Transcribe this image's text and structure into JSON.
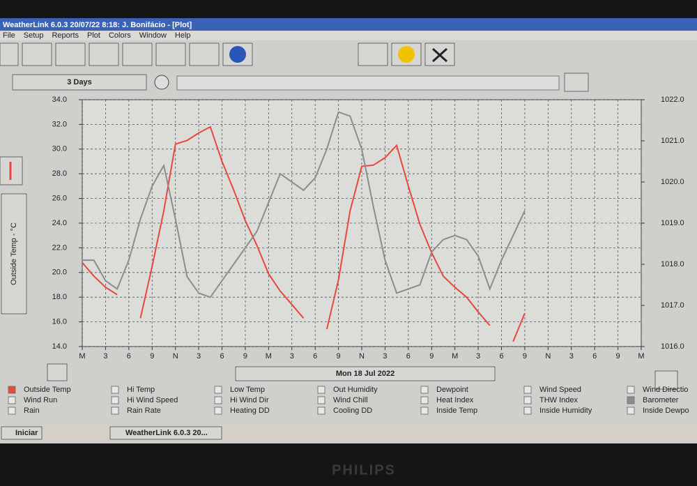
{
  "ui": {
    "title_bar": "WeatherLink 6.0.3  20/07/22  8:18: J. Bonifácio - [Plot]",
    "menu": [
      "File",
      "Setup",
      "Reports",
      "Plot",
      "Colors",
      "Window",
      "Help"
    ],
    "range_button": "3 Days",
    "legend_options": [
      "Wind Run",
      "Rain",
      "Hi Temp",
      "Hi Wind Speed",
      "Rain Rate",
      "Low Temp",
      "Hi Wind Dir",
      "Heating DD",
      "Out Humidity",
      "Wind Chill",
      "Cooling DD",
      "Dewpoint",
      "Heat Index",
      "Inside Temp",
      "Wind Speed",
      "THW Index",
      "Inside Humidity",
      "Wind Directio",
      "Inside Dewpo"
    ],
    "taskbar_start": "Iniciar",
    "taskbar_task": "WeatherLink 6.0.3  20...",
    "monitor_brand": "PHILIPS"
  },
  "chart_data": {
    "type": "line",
    "y_label": "Outside Temp - °C",
    "date_label": "Mon 18 Jul 2022",
    "x": [
      0,
      1.5,
      3,
      4.5,
      6,
      7.5,
      9,
      10.5,
      12,
      13.5,
      15,
      16.5,
      18,
      19.5,
      21,
      22.5,
      24,
      25.5,
      27,
      28.5,
      30,
      31.5,
      33,
      34.5,
      36,
      37.5,
      39,
      40.5,
      42,
      43.5,
      45,
      46.5,
      48,
      49.5,
      51,
      52.5,
      54,
      55.5,
      57
    ],
    "xlim": [
      0,
      72
    ],
    "xticks": [
      {
        "value": 0,
        "label": "M"
      },
      {
        "value": 3,
        "label": "3"
      },
      {
        "value": 6,
        "label": "6"
      },
      {
        "value": 9,
        "label": "9"
      },
      {
        "value": 12,
        "label": "N"
      },
      {
        "value": 15,
        "label": "3"
      },
      {
        "value": 18,
        "label": "6"
      },
      {
        "value": 21,
        "label": "9"
      },
      {
        "value": 24,
        "label": "M"
      },
      {
        "value": 27,
        "label": "3"
      },
      {
        "value": 30,
        "label": "6"
      },
      {
        "value": 33,
        "label": "9"
      },
      {
        "value": 36,
        "label": "N"
      },
      {
        "value": 39,
        "label": "3"
      },
      {
        "value": 42,
        "label": "6"
      },
      {
        "value": 45,
        "label": "9"
      },
      {
        "value": 48,
        "label": "M"
      },
      {
        "value": 51,
        "label": "3"
      },
      {
        "value": 54,
        "label": "6"
      },
      {
        "value": 57,
        "label": "9"
      },
      {
        "value": 60,
        "label": "N"
      },
      {
        "value": 63,
        "label": "3"
      },
      {
        "value": 66,
        "label": "6"
      },
      {
        "value": 69,
        "label": "9"
      },
      {
        "value": 72,
        "label": "M"
      }
    ],
    "ylim": [
      14,
      34
    ],
    "yticks": [
      {
        "value": 14,
        "label": "14.0"
      },
      {
        "value": 16,
        "label": "16.0"
      },
      {
        "value": 18,
        "label": "18.0"
      },
      {
        "value": 20,
        "label": "20.0"
      },
      {
        "value": 22,
        "label": "22.0"
      },
      {
        "value": 24,
        "label": "24.0"
      },
      {
        "value": 26,
        "label": "26.0"
      },
      {
        "value": 28,
        "label": "28.0"
      },
      {
        "value": 30,
        "label": "30.0"
      },
      {
        "value": 32,
        "label": "32.0"
      },
      {
        "value": 34,
        "label": "34.0"
      }
    ],
    "y2lim": [
      1016,
      1022
    ],
    "y2ticks": [
      {
        "value": 1016,
        "label": "1016.0"
      },
      {
        "value": 1017,
        "label": "1017.0"
      },
      {
        "value": 1018,
        "label": "1018.0"
      },
      {
        "value": 1019,
        "label": "1019.0"
      },
      {
        "value": 1020,
        "label": "1020.0"
      },
      {
        "value": 1021,
        "label": "1021.0"
      },
      {
        "value": 1022,
        "label": "1022.0"
      }
    ],
    "grid": true,
    "series": [
      {
        "name": "Outside Temp",
        "color": "#e8473c",
        "values": [
          20.8,
          19.7,
          18.8,
          18.2,
          null,
          16.3,
          20.5,
          25.0,
          30.4,
          30.7,
          31.3,
          31.8,
          29.0,
          26.7,
          24.2,
          22.2,
          19.9,
          18.5,
          17.4,
          16.3,
          null,
          15.4,
          19.4,
          25.0,
          28.6,
          28.7,
          29.3,
          30.3,
          27.0,
          23.9,
          21.6,
          19.7,
          18.8,
          18.0,
          16.8,
          15.7,
          null,
          14.4,
          16.7
        ]
      },
      {
        "name": "Barometer",
        "color": "#8c8c8c",
        "axis": "y2",
        "values": [
          1018.1,
          1018.1,
          1017.6,
          1017.4,
          1018.1,
          1019.1,
          1019.9,
          1020.4,
          1019.1,
          1017.7,
          1017.3,
          1017.2,
          1017.6,
          1018.0,
          1018.4,
          1018.8,
          1019.5,
          1020.2,
          1020.0,
          1019.8,
          1020.1,
          1020.8,
          1021.7,
          1021.6,
          1020.8,
          1019.4,
          1018.1,
          1017.3,
          1017.4,
          1017.5,
          1018.3,
          1018.6,
          1018.7,
          1018.6,
          1018.2,
          1017.4,
          1018.1,
          1018.7,
          1019.3
        ]
      }
    ]
  }
}
